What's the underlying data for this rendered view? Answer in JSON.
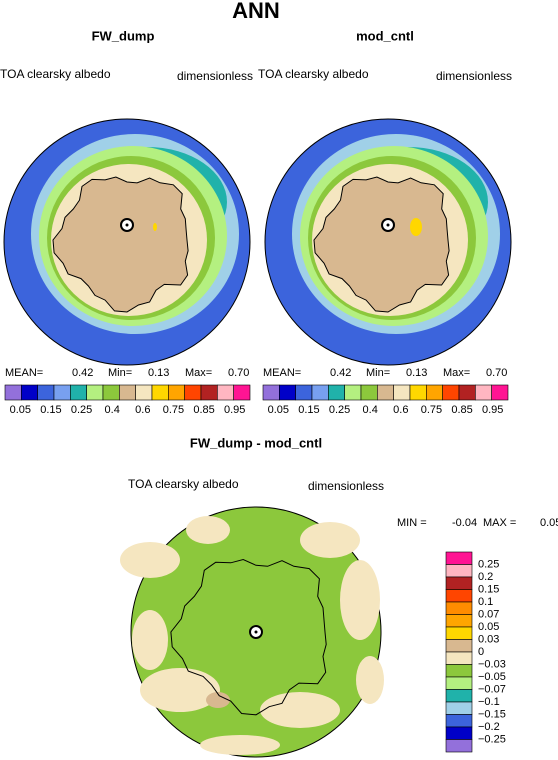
{
  "title": "ANN",
  "panels": [
    {
      "title": "FW_dump",
      "left_label": "TOA clearsky albedo",
      "right_label": "dimensionless",
      "stats": [
        {
          "label": "MEAN=",
          "value": "0.42"
        },
        {
          "label": "Min=",
          "value": "0.13"
        },
        {
          "label": "Max=",
          "value": "0.70"
        }
      ],
      "colorbar": {
        "labels": [
          "0.05",
          "0.15",
          "0.25",
          "0.4",
          "0.6",
          "0.75",
          "0.85",
          "0.95"
        ],
        "colors": [
          "#9370db",
          "#0000c8",
          "#3c64dc",
          "#78a0f0",
          "#20b2aa",
          "#b4f080",
          "#8cc83c",
          "#d8b890",
          "#f5e6c0",
          "#ffd700",
          "#ffa500",
          "#ff4500",
          "#b22222",
          "#ffb6c1",
          "#ff1493"
        ]
      }
    },
    {
      "title": "mod_cntl",
      "left_label": "TOA clearsky albedo",
      "right_label": "dimensionless",
      "stats": [
        {
          "label": "MEAN=",
          "value": "0.42"
        },
        {
          "label": "Min=",
          "value": "0.13"
        },
        {
          "label": "Max=",
          "value": "0.70"
        }
      ],
      "colorbar": {
        "labels": [
          "0.05",
          "0.15",
          "0.25",
          "0.4",
          "0.6",
          "0.75",
          "0.85",
          "0.95"
        ],
        "colors": [
          "#9370db",
          "#0000c8",
          "#3c64dc",
          "#78a0f0",
          "#20b2aa",
          "#b4f080",
          "#8cc83c",
          "#d8b890",
          "#f5e6c0",
          "#ffd700",
          "#ffa500",
          "#ff4500",
          "#b22222",
          "#ffb6c1",
          "#ff1493"
        ]
      }
    },
    {
      "title": "FW_dump - mod_cntl",
      "left_label": "TOA clearsky albedo",
      "right_label": "dimensionless",
      "stats": [
        {
          "label": "MIN =",
          "value": "-0.04"
        },
        {
          "label": "MAX =",
          "value": "0.05"
        }
      ],
      "colorbar": {
        "labels": [
          "0.25",
          "0.2",
          "0.15",
          "0.1",
          "0.07",
          "0.05",
          "0.03",
          "0",
          "−0.03",
          "−0.05",
          "−0.07",
          "−0.1",
          "−0.15",
          "−0.2",
          "−0.25"
        ],
        "colors": [
          "#ff1493",
          "#ffb6c1",
          "#b22222",
          "#ff4500",
          "#ff8c00",
          "#ffa500",
          "#ffd700",
          "#d8b890",
          "#f5e6c0",
          "#8cc83c",
          "#b4f080",
          "#20b2aa",
          "#a0d0e8",
          "#3c64dc",
          "#0000c8",
          "#9370db"
        ]
      }
    }
  ]
}
